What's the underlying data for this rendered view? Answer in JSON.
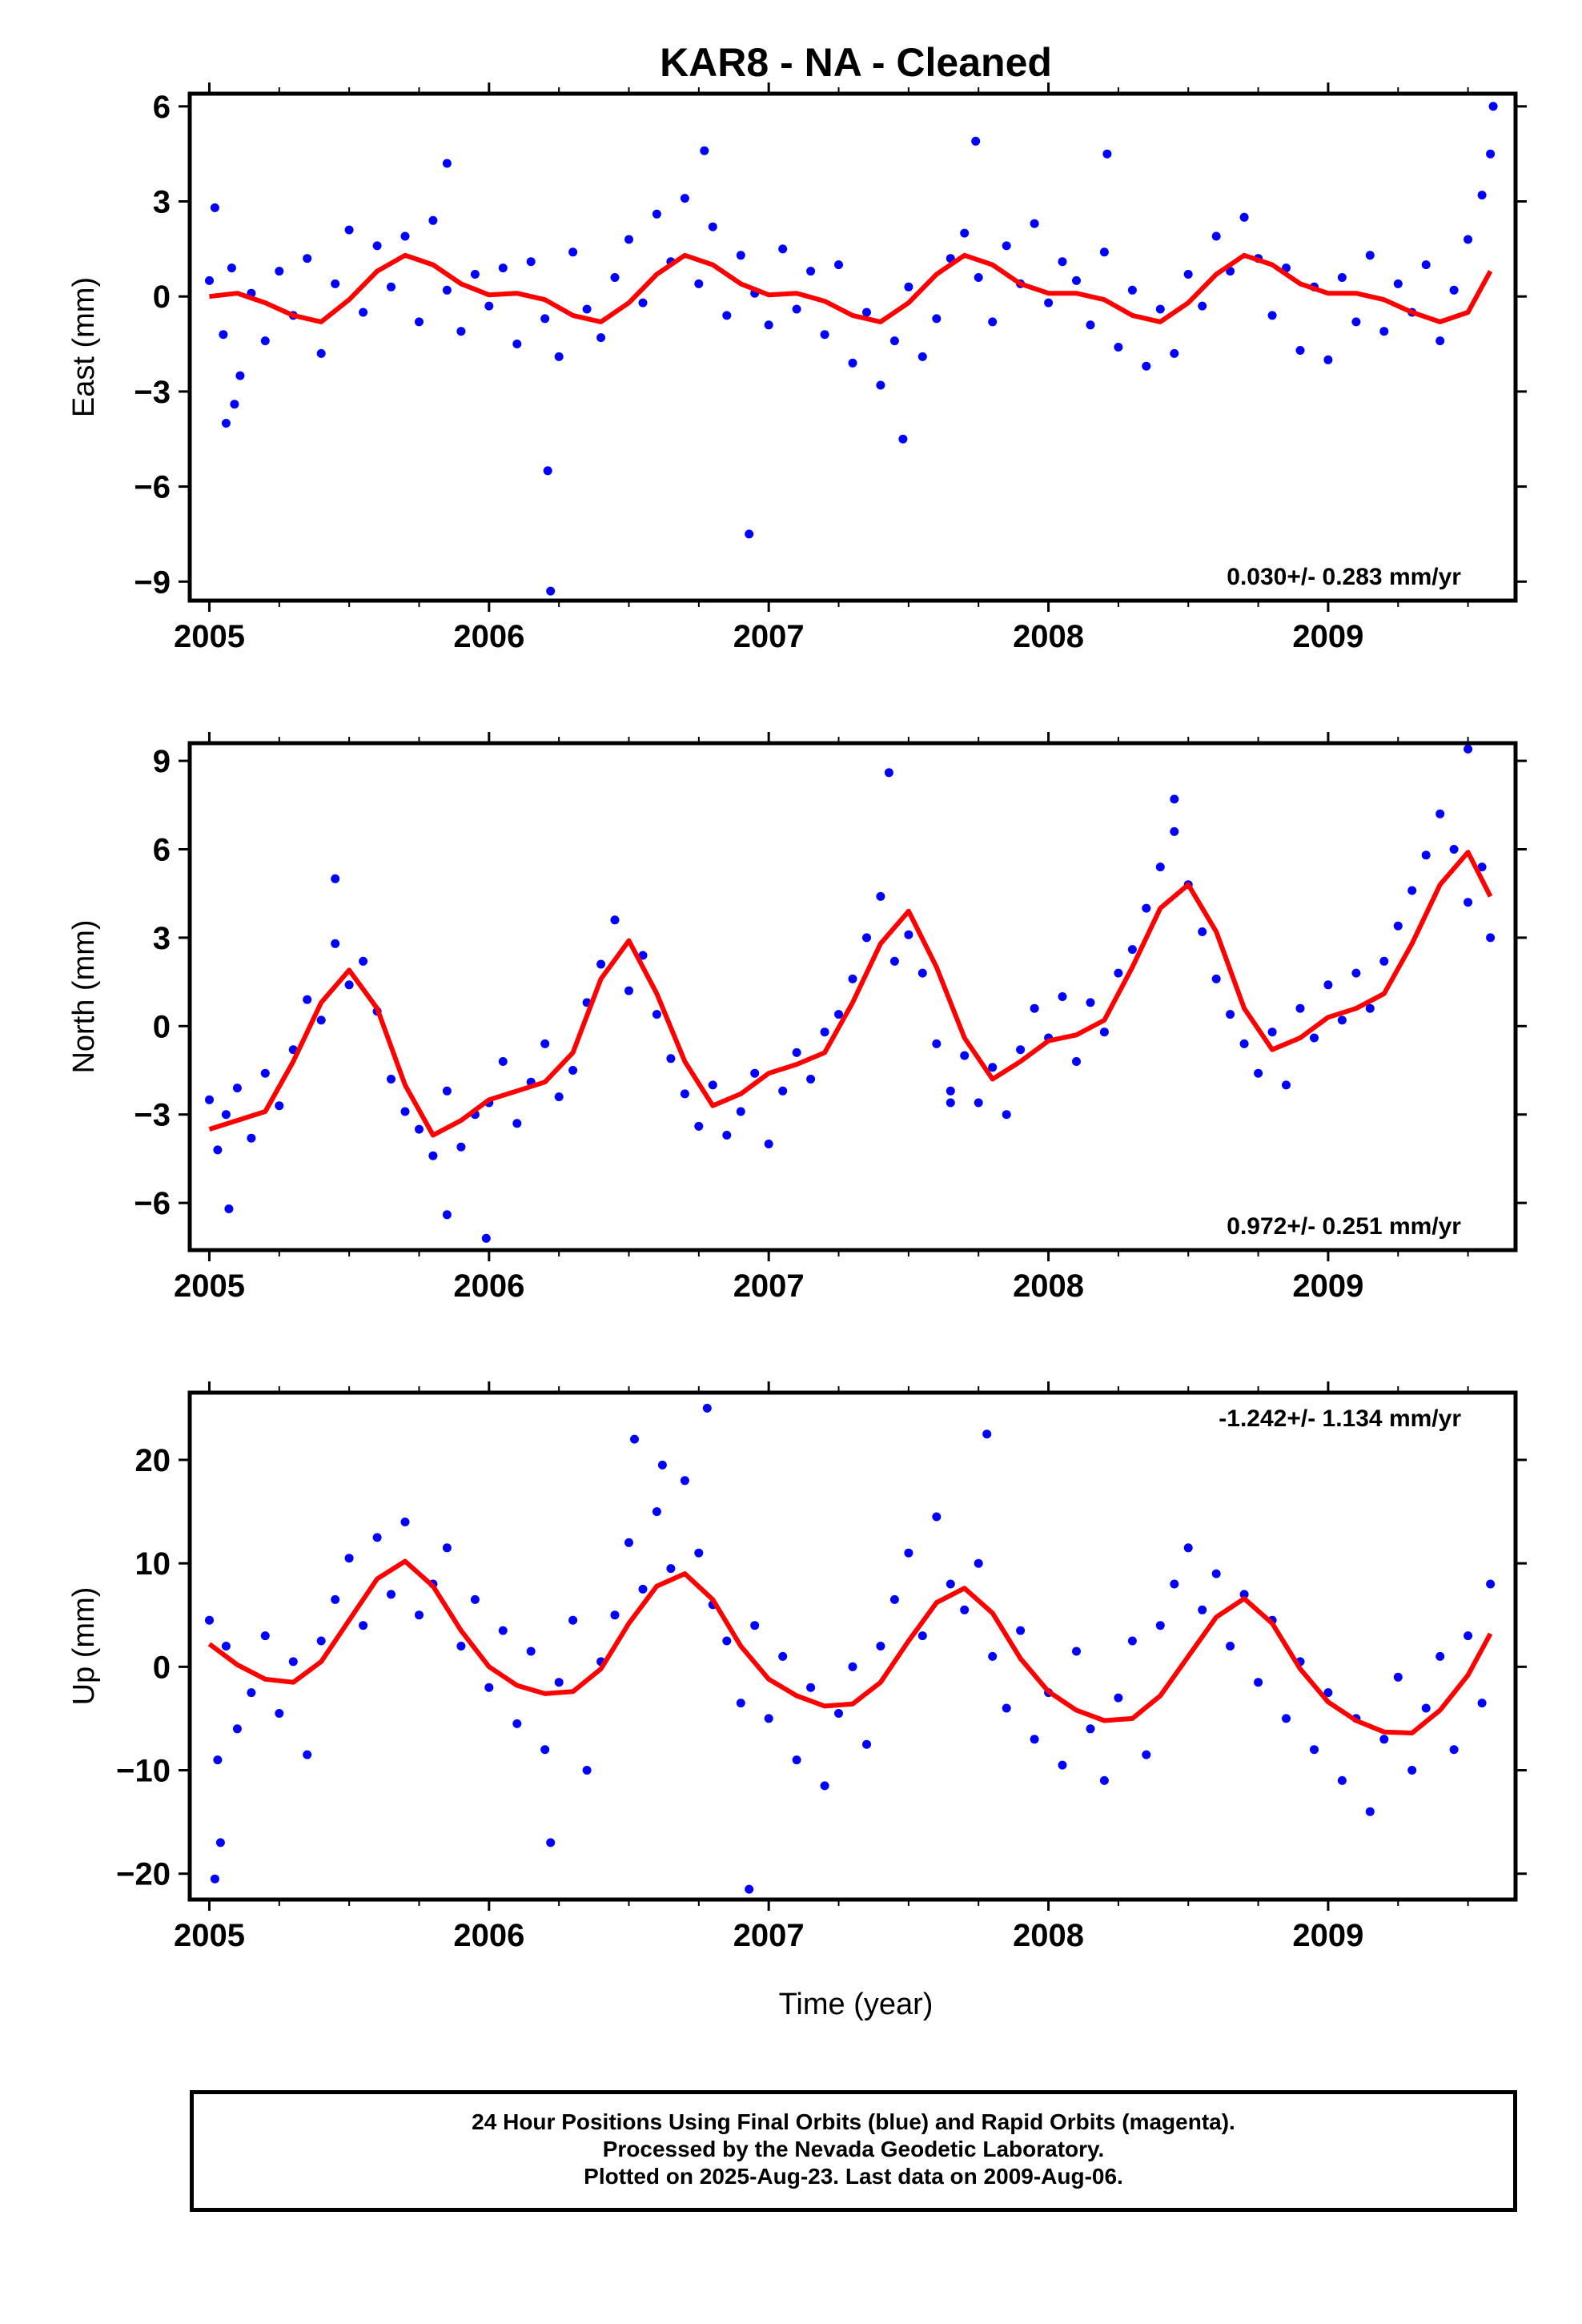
{
  "title": "KAR8  - NA - Cleaned",
  "x_axis_label": "Time (year)",
  "footer": {
    "line1": "24 Hour Positions Using Final Orbits (blue) and Rapid Orbits (magenta).",
    "line2": "Processed by the Nevada Geodetic Laboratory.",
    "line3": "Plotted on 2025-Aug-23. Last data on 2009-Aug-06."
  },
  "colors": {
    "points": "#0000ff",
    "fit": "#ff0000",
    "frame": "#000000"
  },
  "chart_data": [
    {
      "type": "scatter",
      "component": "east",
      "ylabel": "East (mm)",
      "rate_label": "0.030+/- 0.283 mm/yr",
      "xlim": [
        2004.93,
        2009.67
      ],
      "ylim": [
        -9.6,
        6.4
      ],
      "xticks": [
        2005,
        2006,
        2007,
        2008,
        2009
      ],
      "yticks": [
        -9,
        -6,
        -3,
        0,
        3,
        6
      ],
      "ytick_labels": [
        "−9",
        "−6",
        "−3",
        "0",
        "3",
        "6"
      ],
      "series": [
        {
          "role": "points",
          "x": [
            2005.0,
            2005.02,
            2005.05,
            2005.08,
            2005.11,
            2005.15,
            2005.2,
            2005.25,
            2005.3,
            2005.35,
            2005.4,
            2005.45,
            2005.5,
            2005.55,
            2005.6,
            2005.65,
            2005.7,
            2005.75,
            2005.8,
            2005.85,
            2005.9,
            2005.95,
            2006.0,
            2006.05,
            2006.1,
            2006.15,
            2006.2,
            2006.25,
            2006.3,
            2006.35,
            2006.4,
            2006.45,
            2006.5,
            2006.55,
            2006.6,
            2006.65,
            2006.7,
            2006.75,
            2006.8,
            2006.85,
            2006.9,
            2006.95,
            2007.0,
            2007.05,
            2007.1,
            2007.15,
            2007.2,
            2007.25,
            2007.3,
            2007.35,
            2007.4,
            2007.45,
            2007.5,
            2007.55,
            2007.6,
            2007.65,
            2007.7,
            2007.75,
            2007.8,
            2007.85,
            2007.9,
            2007.95,
            2008.0,
            2008.05,
            2008.1,
            2008.15,
            2008.2,
            2008.25,
            2008.3,
            2008.35,
            2008.4,
            2008.45,
            2008.5,
            2008.55,
            2008.6,
            2008.65,
            2008.7,
            2008.75,
            2008.8,
            2008.85,
            2008.9,
            2008.95,
            2009.0,
            2009.05,
            2009.1,
            2009.15,
            2009.2,
            2009.25,
            2009.3,
            2009.35,
            2009.4,
            2009.45,
            2009.5,
            2009.55,
            2009.58,
            2005.06,
            2005.09,
            2006.21,
            2006.22,
            2006.93,
            2005.85,
            2007.74,
            2008.21,
            2009.59,
            2007.48,
            2006.77
          ],
          "y": [
            0.5,
            2.8,
            -1.2,
            0.9,
            -2.5,
            0.1,
            -1.4,
            0.8,
            -0.6,
            1.2,
            -1.8,
            0.4,
            2.1,
            -0.5,
            1.6,
            0.3,
            1.9,
            -0.8,
            2.4,
            0.2,
            -1.1,
            0.7,
            -0.3,
            0.9,
            -1.5,
            1.1,
            -0.7,
            -1.9,
            1.4,
            -0.4,
            -1.3,
            0.6,
            1.8,
            -0.2,
            2.6,
            1.1,
            3.1,
            0.4,
            2.2,
            -0.6,
            1.3,
            0.1,
            -0.9,
            1.5,
            -0.4,
            0.8,
            -1.2,
            1.0,
            -2.1,
            -0.5,
            -2.8,
            -1.4,
            0.3,
            -1.9,
            -0.7,
            1.2,
            2.0,
            0.6,
            -0.8,
            1.6,
            0.4,
            2.3,
            -0.2,
            1.1,
            0.5,
            -0.9,
            1.4,
            -1.6,
            0.2,
            -2.2,
            -0.4,
            -1.8,
            0.7,
            -0.3,
            1.9,
            0.8,
            2.5,
            1.2,
            -0.6,
            0.9,
            -1.7,
            0.3,
            -2.0,
            0.6,
            -0.8,
            1.3,
            -1.1,
            0.4,
            -0.5,
            1.0,
            -1.4,
            0.2,
            1.8,
            3.2,
            4.5,
            -4.0,
            -3.4,
            -5.5,
            -9.3,
            -7.5,
            4.2,
            4.9,
            4.5,
            6.0,
            -4.5,
            4.6
          ]
        },
        {
          "role": "fit",
          "x": [
            2005.0,
            2005.1,
            2005.2,
            2005.3,
            2005.4,
            2005.5,
            2005.6,
            2005.7,
            2005.8,
            2005.9,
            2006.0,
            2006.1,
            2006.2,
            2006.3,
            2006.4,
            2006.5,
            2006.6,
            2006.7,
            2006.8,
            2006.9,
            2007.0,
            2007.1,
            2007.2,
            2007.3,
            2007.4,
            2007.5,
            2007.6,
            2007.7,
            2007.8,
            2007.9,
            2008.0,
            2008.1,
            2008.2,
            2008.3,
            2008.4,
            2008.5,
            2008.6,
            2008.7,
            2008.8,
            2008.9,
            2009.0,
            2009.1,
            2009.2,
            2009.3,
            2009.4,
            2009.5,
            2009.58
          ],
          "y": [
            0.0,
            0.1,
            -0.2,
            -0.6,
            -0.8,
            -0.1,
            0.8,
            1.3,
            1.0,
            0.4,
            0.05,
            0.1,
            -0.1,
            -0.6,
            -0.8,
            -0.2,
            0.7,
            1.3,
            1.0,
            0.4,
            0.05,
            0.1,
            -0.15,
            -0.6,
            -0.8,
            -0.2,
            0.7,
            1.3,
            1.0,
            0.4,
            0.1,
            0.1,
            -0.1,
            -0.6,
            -0.8,
            -0.2,
            0.7,
            1.3,
            1.0,
            0.4,
            0.1,
            0.1,
            -0.1,
            -0.5,
            -0.8,
            -0.5,
            0.8
          ]
        }
      ]
    },
    {
      "type": "scatter",
      "component": "north",
      "ylabel": "North (mm)",
      "rate_label": "0.972+/- 0.251 mm/yr",
      "xlim": [
        2004.93,
        2009.67
      ],
      "ylim": [
        -7.6,
        9.6
      ],
      "xticks": [
        2005,
        2006,
        2007,
        2008,
        2009
      ],
      "yticks": [
        -6,
        -3,
        0,
        3,
        6,
        9
      ],
      "ytick_labels": [
        "−6",
        "−3",
        "0",
        "3",
        "6",
        "9"
      ],
      "series": [
        {
          "role": "points",
          "x": [
            2005.0,
            2005.03,
            2005.06,
            2005.1,
            2005.15,
            2005.2,
            2005.25,
            2005.3,
            2005.35,
            2005.4,
            2005.45,
            2005.5,
            2005.55,
            2005.6,
            2005.65,
            2005.7,
            2005.75,
            2005.8,
            2005.85,
            2005.9,
            2005.95,
            2006.0,
            2006.05,
            2006.1,
            2006.15,
            2006.2,
            2006.25,
            2006.3,
            2006.35,
            2006.4,
            2006.45,
            2006.5,
            2006.55,
            2006.6,
            2006.65,
            2006.7,
            2006.75,
            2006.8,
            2006.85,
            2006.9,
            2006.95,
            2007.0,
            2007.05,
            2007.1,
            2007.15,
            2007.2,
            2007.25,
            2007.3,
            2007.35,
            2007.4,
            2007.45,
            2007.5,
            2007.55,
            2007.6,
            2007.65,
            2007.7,
            2007.75,
            2007.8,
            2007.85,
            2007.9,
            2007.95,
            2008.0,
            2008.05,
            2008.1,
            2008.15,
            2008.2,
            2008.25,
            2008.3,
            2008.35,
            2008.4,
            2008.45,
            2008.5,
            2008.55,
            2008.6,
            2008.65,
            2008.7,
            2008.75,
            2008.8,
            2008.85,
            2008.9,
            2008.95,
            2009.0,
            2009.05,
            2009.1,
            2009.15,
            2009.2,
            2009.25,
            2009.3,
            2009.35,
            2009.4,
            2009.45,
            2009.5,
            2009.55,
            2009.58,
            2005.07,
            2005.45,
            2005.85,
            2005.99,
            2007.43,
            2009.5,
            2008.45,
            2007.65
          ],
          "y": [
            -2.5,
            -4.2,
            -3.0,
            -2.1,
            -3.8,
            -1.6,
            -2.7,
            -0.8,
            0.9,
            0.2,
            2.8,
            1.4,
            2.2,
            0.5,
            -1.8,
            -2.9,
            -3.5,
            -4.4,
            -2.2,
            -4.1,
            -3.0,
            -2.6,
            -1.2,
            -3.3,
            -1.9,
            -0.6,
            -2.4,
            -1.5,
            0.8,
            2.1,
            3.6,
            1.2,
            2.4,
            0.4,
            -1.1,
            -2.3,
            -3.4,
            -2.0,
            -3.7,
            -2.9,
            -1.6,
            -4.0,
            -2.2,
            -0.9,
            -1.8,
            -0.2,
            0.4,
            1.6,
            3.0,
            4.4,
            2.2,
            3.1,
            1.8,
            -0.6,
            -2.2,
            -1.0,
            -2.6,
            -1.4,
            -3.0,
            -0.8,
            0.6,
            -0.4,
            1.0,
            -1.2,
            0.8,
            -0.2,
            1.8,
            2.6,
            4.0,
            5.4,
            6.6,
            4.8,
            3.2,
            1.6,
            0.4,
            -0.6,
            -1.6,
            -0.2,
            -2.0,
            0.6,
            -0.4,
            1.4,
            0.2,
            1.8,
            0.6,
            2.2,
            3.4,
            4.6,
            5.8,
            7.2,
            6.0,
            4.2,
            5.4,
            3.0,
            -6.2,
            5.0,
            -6.4,
            -7.2,
            8.6,
            9.4,
            7.7,
            -2.6
          ]
        },
        {
          "role": "fit",
          "x": [
            2005.0,
            2005.1,
            2005.2,
            2005.3,
            2005.4,
            2005.5,
            2005.6,
            2005.7,
            2005.8,
            2005.9,
            2006.0,
            2006.1,
            2006.2,
            2006.3,
            2006.4,
            2006.5,
            2006.6,
            2006.7,
            2006.8,
            2006.9,
            2007.0,
            2007.1,
            2007.2,
            2007.3,
            2007.4,
            2007.5,
            2007.6,
            2007.7,
            2007.8,
            2007.9,
            2008.0,
            2008.1,
            2008.2,
            2008.3,
            2008.4,
            2008.5,
            2008.6,
            2008.7,
            2008.8,
            2008.9,
            2009.0,
            2009.1,
            2009.2,
            2009.3,
            2009.4,
            2009.5,
            2009.58
          ],
          "y": [
            -3.5,
            -3.2,
            -2.9,
            -1.2,
            0.8,
            1.9,
            0.6,
            -2.0,
            -3.7,
            -3.2,
            -2.5,
            -2.2,
            -1.9,
            -0.9,
            1.6,
            2.9,
            1.1,
            -1.2,
            -2.7,
            -2.3,
            -1.6,
            -1.3,
            -0.9,
            0.8,
            2.8,
            3.9,
            2.0,
            -0.4,
            -1.8,
            -1.2,
            -0.5,
            -0.3,
            0.2,
            2.0,
            4.0,
            4.8,
            3.2,
            0.6,
            -0.8,
            -0.4,
            0.3,
            0.6,
            1.1,
            2.8,
            4.8,
            5.9,
            4.4
          ]
        }
      ]
    },
    {
      "type": "scatter",
      "component": "up",
      "ylabel": "Up (mm)",
      "rate_label": "-1.242+/- 1.134 mm/yr",
      "xlim": [
        2004.93,
        2009.67
      ],
      "ylim": [
        -22.5,
        26.5
      ],
      "xticks": [
        2005,
        2006,
        2007,
        2008,
        2009
      ],
      "yticks": [
        -20,
        -10,
        0,
        10,
        20
      ],
      "ytick_labels": [
        "−20",
        "−10",
        "0",
        "10",
        "20"
      ],
      "series": [
        {
          "role": "points",
          "x": [
            2005.0,
            2005.03,
            2005.06,
            2005.1,
            2005.15,
            2005.2,
            2005.25,
            2005.3,
            2005.35,
            2005.4,
            2005.45,
            2005.5,
            2005.55,
            2005.6,
            2005.65,
            2005.7,
            2005.75,
            2005.8,
            2005.85,
            2005.9,
            2005.95,
            2006.0,
            2006.05,
            2006.1,
            2006.15,
            2006.2,
            2006.25,
            2006.3,
            2006.35,
            2006.4,
            2006.45,
            2006.5,
            2006.55,
            2006.6,
            2006.65,
            2006.7,
            2006.75,
            2006.8,
            2006.85,
            2006.9,
            2006.95,
            2007.0,
            2007.05,
            2007.1,
            2007.15,
            2007.2,
            2007.25,
            2007.3,
            2007.35,
            2007.4,
            2007.45,
            2007.5,
            2007.55,
            2007.6,
            2007.65,
            2007.7,
            2007.75,
            2007.8,
            2007.85,
            2007.9,
            2007.95,
            2008.0,
            2008.05,
            2008.1,
            2008.15,
            2008.2,
            2008.25,
            2008.3,
            2008.35,
            2008.4,
            2008.45,
            2008.5,
            2008.55,
            2008.6,
            2008.65,
            2008.7,
            2008.75,
            2008.8,
            2008.85,
            2008.9,
            2008.95,
            2009.0,
            2009.05,
            2009.1,
            2009.15,
            2009.2,
            2009.25,
            2009.3,
            2009.35,
            2009.4,
            2009.45,
            2009.5,
            2009.55,
            2009.58,
            2005.02,
            2005.04,
            2006.22,
            2006.52,
            2006.78,
            2006.93,
            2007.78,
            2006.62
          ],
          "y": [
            4.5,
            -9.0,
            2.0,
            -6.0,
            -2.5,
            3.0,
            -4.5,
            0.5,
            -8.5,
            2.5,
            6.5,
            10.5,
            4.0,
            12.5,
            7.0,
            14.0,
            5.0,
            8.0,
            11.5,
            2.0,
            6.5,
            -2.0,
            3.5,
            -5.5,
            1.5,
            -8.0,
            -1.5,
            4.5,
            -10.0,
            0.5,
            5.0,
            12.0,
            7.5,
            15.0,
            9.5,
            18.0,
            11.0,
            6.0,
            2.5,
            -3.5,
            4.0,
            -5.0,
            1.0,
            -9.0,
            -2.0,
            -11.5,
            -4.5,
            0.0,
            -7.5,
            2.0,
            6.5,
            11.0,
            3.0,
            14.5,
            8.0,
            5.5,
            10.0,
            1.0,
            -4.0,
            3.5,
            -7.0,
            -2.5,
            -9.5,
            1.5,
            -6.0,
            -11.0,
            -3.0,
            2.5,
            -8.5,
            4.0,
            8.0,
            11.5,
            5.5,
            9.0,
            2.0,
            7.0,
            -1.5,
            4.5,
            -5.0,
            0.5,
            -8.0,
            -2.5,
            -11.0,
            -5.0,
            -14.0,
            -7.0,
            -1.0,
            -10.0,
            -4.0,
            1.0,
            -8.0,
            3.0,
            -3.5,
            8.0,
            -20.5,
            -17.0,
            -17.0,
            22.0,
            25.0,
            -21.5,
            22.5,
            19.5
          ]
        },
        {
          "role": "fit",
          "x": [
            2005.0,
            2005.1,
            2005.2,
            2005.3,
            2005.4,
            2005.5,
            2005.6,
            2005.7,
            2005.8,
            2005.9,
            2006.0,
            2006.1,
            2006.2,
            2006.3,
            2006.4,
            2006.5,
            2006.6,
            2006.7,
            2006.8,
            2006.9,
            2007.0,
            2007.1,
            2007.2,
            2007.3,
            2007.4,
            2007.5,
            2007.6,
            2007.7,
            2007.8,
            2007.9,
            2008.0,
            2008.1,
            2008.2,
            2008.3,
            2008.4,
            2008.5,
            2008.6,
            2008.7,
            2008.8,
            2008.9,
            2009.0,
            2009.1,
            2009.2,
            2009.3,
            2009.4,
            2009.5,
            2009.58
          ],
          "y": [
            2.2,
            0.2,
            -1.2,
            -1.5,
            0.5,
            4.5,
            8.5,
            10.2,
            7.8,
            3.5,
            0.0,
            -1.8,
            -2.6,
            -2.4,
            -0.2,
            4.2,
            7.8,
            9.0,
            6.5,
            2.0,
            -1.2,
            -2.8,
            -3.8,
            -3.6,
            -1.5,
            2.5,
            6.2,
            7.6,
            5.2,
            0.8,
            -2.4,
            -4.2,
            -5.2,
            -5.0,
            -2.8,
            1.0,
            4.8,
            6.6,
            4.2,
            -0.2,
            -3.4,
            -5.2,
            -6.3,
            -6.4,
            -4.2,
            -0.8,
            3.2
          ]
        }
      ]
    }
  ]
}
